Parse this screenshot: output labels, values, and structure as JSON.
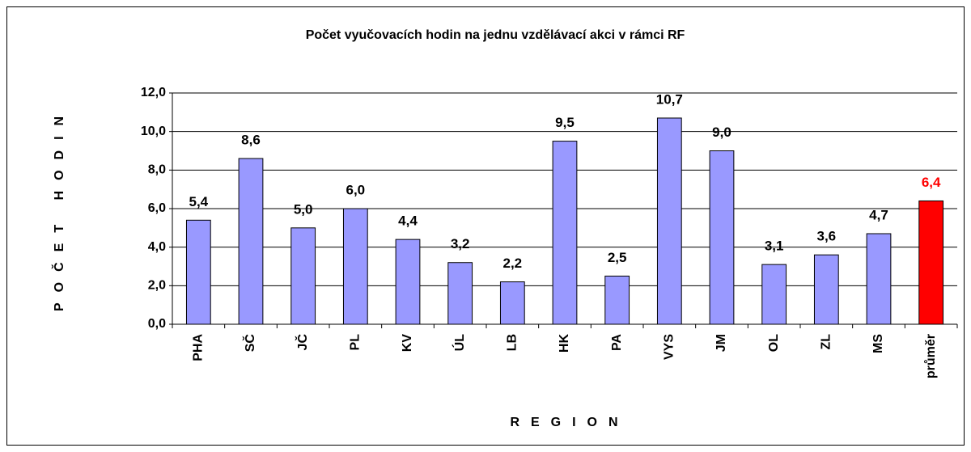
{
  "chart_data": {
    "type": "bar",
    "title": "Počet vyučovacích hodin na jednu vzdělávací akci v rámci RF",
    "y_label": "POČET HODIN",
    "x_label": "REGION",
    "categories": [
      "PHA",
      "SČ",
      "JČ",
      "PL",
      "KV",
      "ÚL",
      "LB",
      "HK",
      "PA",
      "VYS",
      "JM",
      "OL",
      "ZL",
      "MS",
      "průměr"
    ],
    "values": [
      5.4,
      8.6,
      5.0,
      6.0,
      4.4,
      3.2,
      2.2,
      9.5,
      2.5,
      10.7,
      9.0,
      3.1,
      3.6,
      4.7,
      6.4
    ],
    "value_labels": [
      "5,4",
      "8,6",
      "5,0",
      "6,0",
      "4,4",
      "3,2",
      "2,2",
      "9,5",
      "2,5",
      "10,7",
      "9,0",
      "3,1",
      "3,6",
      "4,7",
      "6,4"
    ],
    "colors": [
      "#9999ff",
      "#9999ff",
      "#9999ff",
      "#9999ff",
      "#9999ff",
      "#9999ff",
      "#9999ff",
      "#9999ff",
      "#9999ff",
      "#9999ff",
      "#9999ff",
      "#9999ff",
      "#9999ff",
      "#9999ff",
      "#ff0000"
    ],
    "value_label_colors": [
      "#000000",
      "#000000",
      "#000000",
      "#000000",
      "#000000",
      "#000000",
      "#000000",
      "#000000",
      "#000000",
      "#000000",
      "#000000",
      "#000000",
      "#000000",
      "#000000",
      "#ff0000"
    ],
    "ylim": [
      0,
      12
    ],
    "yticks": [
      {
        "value": 0,
        "label": "0,0"
      },
      {
        "value": 2,
        "label": "2,0"
      },
      {
        "value": 4,
        "label": "4,0"
      },
      {
        "value": 6,
        "label": "6,0"
      },
      {
        "value": 8,
        "label": "8,0"
      },
      {
        "value": 10,
        "label": "10,0"
      },
      {
        "value": 12,
        "label": "12,0"
      }
    ],
    "grid": true
  }
}
